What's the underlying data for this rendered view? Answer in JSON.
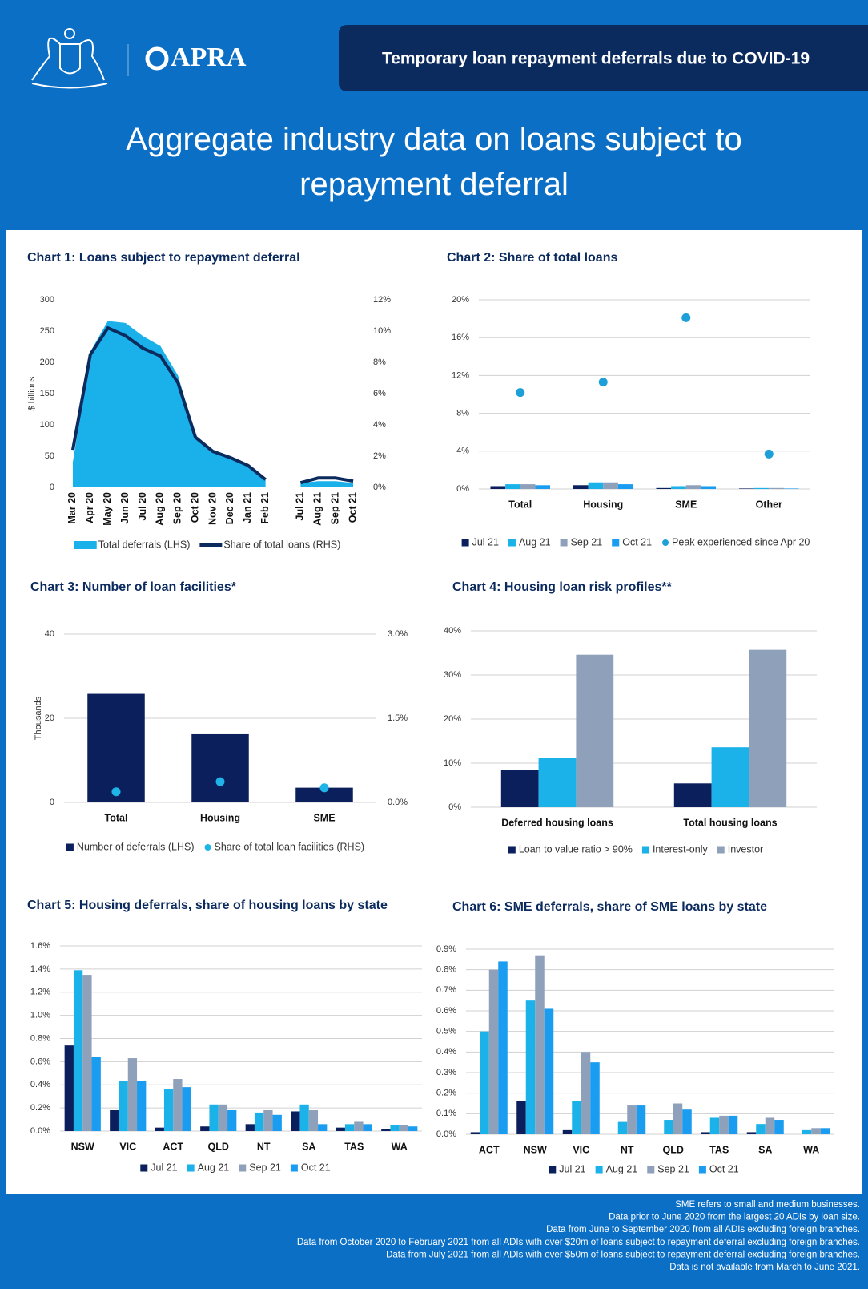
{
  "header": {
    "logo_text": "APRA",
    "banner": "Temporary loan repayment deferrals due to COVID-19",
    "title": "Aggregate industry data on loans subject to repayment deferral"
  },
  "chart_data": [
    {
      "type": "combo",
      "title": "Chart 1: Loans subject to repayment deferral",
      "y_label": "$ billions",
      "categories": [
        "Mar 20",
        "Apr 20",
        "May 20",
        "Jun 20",
        "Jul 20",
        "Aug 20",
        "Sep 20",
        "Oct 20",
        "Nov 20",
        "Dec 20",
        "Jan 21",
        "Feb 21",
        null,
        "Jul 21",
        "Aug 21",
        "Sep 21",
        "Oct 21"
      ],
      "series": [
        {
          "name": "Total deferrals (LHS)",
          "type": "area",
          "color": "#1ab0ea",
          "values": [
            40,
            217,
            266,
            263,
            242,
            226,
            179,
            83,
            59,
            49,
            36,
            13,
            null,
            7,
            10,
            10,
            7
          ]
        },
        {
          "name": "Share of total loans (RHS)",
          "type": "line",
          "axis": "y2",
          "color": "#0b2a5e",
          "values": [
            2.4,
            8.5,
            10.2,
            9.7,
            8.9,
            8.4,
            6.7,
            3.2,
            2.3,
            1.9,
            1.4,
            0.5,
            null,
            0.3,
            0.6,
            0.6,
            0.4
          ]
        }
      ],
      "ylim": [
        0,
        300
      ],
      "yticks": [
        0,
        50,
        100,
        150,
        200,
        250,
        300
      ],
      "y2lim": [
        0,
        12
      ],
      "y2ticks": [
        {
          "value": 0,
          "label": "0%"
        },
        {
          "value": 2,
          "label": "2%"
        },
        {
          "value": 4,
          "label": "4%"
        },
        {
          "value": 6,
          "label": "6%"
        },
        {
          "value": 8,
          "label": "8%"
        },
        {
          "value": 10,
          "label": "10%"
        },
        {
          "value": 12,
          "label": "12%"
        }
      ],
      "grid": false
    },
    {
      "type": "bar",
      "title": "Chart 2: Share of total loans",
      "categories": [
        "Total",
        "Housing",
        "SME",
        "Other"
      ],
      "series": [
        {
          "name": "Jul 21",
          "color": "#0a1f5c",
          "values": [
            0.3,
            0.4,
            0.1,
            0.05
          ]
        },
        {
          "name": "Aug 21",
          "color": "#1ab2e8",
          "values": [
            0.5,
            0.7,
            0.3,
            0.1
          ]
        },
        {
          "name": "Sep 21",
          "color": "#8fa0ba",
          "values": [
            0.5,
            0.7,
            0.4,
            0.1
          ]
        },
        {
          "name": "Oct 21",
          "color": "#1a9cf0",
          "values": [
            0.4,
            0.5,
            0.3,
            0.05
          ]
        },
        {
          "name": "Peak experienced since Apr 20",
          "type": "scatter",
          "color": "#1d9fd8",
          "values": [
            10.2,
            11.3,
            18.1,
            3.7
          ]
        }
      ],
      "ylim": [
        0,
        20
      ],
      "yticks": [
        {
          "value": 0,
          "label": "0%"
        },
        {
          "value": 4,
          "label": "4%"
        },
        {
          "value": 8,
          "label": "8%"
        },
        {
          "value": 12,
          "label": "12%"
        },
        {
          "value": 16,
          "label": "16%"
        },
        {
          "value": 20,
          "label": "20%"
        }
      ],
      "grid": true
    },
    {
      "type": "bar",
      "title": "Chart 3: Number of loan facilities*",
      "y_label": "Thousands",
      "categories": [
        "Total",
        "Housing",
        "SME"
      ],
      "series": [
        {
          "name": "Number of deferrals (LHS)",
          "color": "#0a1f5c",
          "values": [
            25.8,
            16.2,
            3.5
          ]
        },
        {
          "name": "Share of total loan facilities (RHS)",
          "type": "scatter",
          "axis": "y2",
          "color": "#1fb3e8",
          "values": [
            0.19,
            0.37,
            0.26
          ]
        }
      ],
      "ylim": [
        0,
        40
      ],
      "yticks": [
        0,
        20,
        40
      ],
      "y2lim": [
        0,
        3
      ],
      "y2ticks": [
        {
          "value": 0,
          "label": "0.0%"
        },
        {
          "value": 1.5,
          "label": "1.5%"
        },
        {
          "value": 3,
          "label": "3.0%"
        }
      ],
      "grid": true
    },
    {
      "type": "bar",
      "title": "Chart 4: Housing loan risk profiles**",
      "categories": [
        "Deferred housing loans",
        "Total housing loans"
      ],
      "series": [
        {
          "name": "Loan to value ratio > 90%",
          "color": "#0a1f5c",
          "values": [
            8.4,
            5.4
          ]
        },
        {
          "name": "Interest-only",
          "color": "#1ab2e8",
          "values": [
            11.2,
            13.6
          ]
        },
        {
          "name": "Investor",
          "color": "#8fa0ba",
          "values": [
            34.6,
            35.7
          ]
        }
      ],
      "ylim": [
        0,
        40
      ],
      "yticks": [
        {
          "value": 0,
          "label": "0%"
        },
        {
          "value": 10,
          "label": "10%"
        },
        {
          "value": 20,
          "label": "20%"
        },
        {
          "value": 30,
          "label": "30%"
        },
        {
          "value": 40,
          "label": "40%"
        }
      ],
      "grid": true
    },
    {
      "type": "bar",
      "title": "Chart 5: Housing deferrals, share of housing loans by state",
      "categories": [
        "NSW",
        "VIC",
        "ACT",
        "QLD",
        "NT",
        "SA",
        "TAS",
        "WA"
      ],
      "series": [
        {
          "name": "Jul 21",
          "color": "#0a1f5c",
          "values": [
            0.74,
            0.18,
            0.03,
            0.04,
            0.06,
            0.17,
            0.03,
            0.02
          ]
        },
        {
          "name": "Aug 21",
          "color": "#1ab2e8",
          "values": [
            1.39,
            0.43,
            0.36,
            0.23,
            0.16,
            0.23,
            0.06,
            0.05
          ]
        },
        {
          "name": "Sep 21",
          "color": "#8fa0ba",
          "values": [
            1.35,
            0.63,
            0.45,
            0.23,
            0.18,
            0.18,
            0.08,
            0.05
          ]
        },
        {
          "name": "Oct 21",
          "color": "#1a9cf0",
          "values": [
            0.64,
            0.43,
            0.38,
            0.18,
            0.14,
            0.06,
            0.06,
            0.04
          ]
        }
      ],
      "ylim": [
        0,
        1.6
      ],
      "yticks": [
        {
          "value": 0,
          "label": "0.0%"
        },
        {
          "value": 0.2,
          "label": "0.2%"
        },
        {
          "value": 0.4,
          "label": "0.4%"
        },
        {
          "value": 0.6,
          "label": "0.6%"
        },
        {
          "value": 0.8,
          "label": "0.8%"
        },
        {
          "value": 1,
          "label": "1.0%"
        },
        {
          "value": 1.2,
          "label": "1.2%"
        },
        {
          "value": 1.4,
          "label": "1.4%"
        },
        {
          "value": 1.6,
          "label": "1.6%"
        }
      ],
      "grid": true
    },
    {
      "type": "bar",
      "title": "Chart 6: SME deferrals, share of SME loans by state",
      "categories": [
        "ACT",
        "NSW",
        "VIC",
        "NT",
        "QLD",
        "TAS",
        "SA",
        "WA"
      ],
      "series": [
        {
          "name": "Jul 21",
          "color": "#0a1f5c",
          "values": [
            0.01,
            0.16,
            0.02,
            0,
            0,
            0.01,
            0.01,
            0
          ]
        },
        {
          "name": "Aug 21",
          "color": "#1ab2e8",
          "values": [
            0.5,
            0.65,
            0.16,
            0.06,
            0.07,
            0.08,
            0.05,
            0.02
          ]
        },
        {
          "name": "Sep 21",
          "color": "#8fa0ba",
          "values": [
            0.8,
            0.87,
            0.4,
            0.14,
            0.15,
            0.09,
            0.08,
            0.03
          ]
        },
        {
          "name": "Oct 21",
          "color": "#1a9cf0",
          "values": [
            0.84,
            0.61,
            0.35,
            0.14,
            0.12,
            0.09,
            0.07,
            0.03
          ]
        }
      ],
      "ylim": [
        0,
        0.9
      ],
      "yticks": [
        {
          "value": 0,
          "label": "0.0%"
        },
        {
          "value": 0.1,
          "label": "0.1%"
        },
        {
          "value": 0.2,
          "label": "0.2%"
        },
        {
          "value": 0.3,
          "label": "0.3%"
        },
        {
          "value": 0.4,
          "label": "0.4%"
        },
        {
          "value": 0.5,
          "label": "0.5%"
        },
        {
          "value": 0.6,
          "label": "0.6%"
        },
        {
          "value": 0.7,
          "label": "0.7%"
        },
        {
          "value": 0.8,
          "label": "0.8%"
        },
        {
          "value": 0.9,
          "label": "0.9%"
        }
      ],
      "grid": true
    }
  ],
  "notes": [
    "SME refers to small and medium businesses.",
    "Data prior to June 2020 from the largest 20 ADIs by loan size.",
    "Data from June to September 2020 from all ADIs excluding foreign branches.",
    "Data from October 2020 to February 2021 from all ADIs with over $20m of loans subject to repayment deferral excluding foreign branches.",
    "Data from July 2021 from all ADIs with over $50m of loans subject to repayment deferral excluding foreign branches.",
    "Data is not available from March to June 2021."
  ]
}
